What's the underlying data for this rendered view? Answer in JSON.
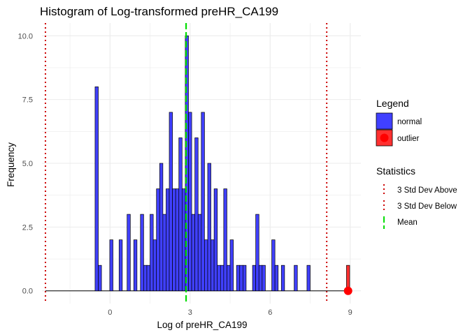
{
  "chart_data": {
    "type": "histogram",
    "title": "Histogram of Log-transformed preHR_CA199",
    "xlabel": "Log of preHR_CA199",
    "ylabel": "Frequency",
    "xlim": [
      -2.55,
      9.4
    ],
    "ylim": [
      -0.5,
      10.5
    ],
    "x_ticks": [
      "0",
      "3",
      "6",
      "9"
    ],
    "x_tick_values": [
      0,
      3,
      6,
      9
    ],
    "y_ticks": [
      "0.0",
      "2.5",
      "5.0",
      "7.5",
      "10.0"
    ],
    "y_tick_values": [
      0,
      2.5,
      5,
      7.5,
      10
    ],
    "grid": true,
    "bin_width": 0.12,
    "normal_bins": [
      {
        "x": -0.5,
        "count": 8
      },
      {
        "x": -0.38,
        "count": 1
      },
      {
        "x": 0.05,
        "count": 2
      },
      {
        "x": 0.4,
        "count": 2
      },
      {
        "x": 0.7,
        "count": 3
      },
      {
        "x": 0.95,
        "count": 2
      },
      {
        "x": 1.2,
        "count": 3
      },
      {
        "x": 1.32,
        "count": 1
      },
      {
        "x": 1.44,
        "count": 1
      },
      {
        "x": 1.56,
        "count": 3
      },
      {
        "x": 1.68,
        "count": 2
      },
      {
        "x": 1.8,
        "count": 4
      },
      {
        "x": 1.92,
        "count": 5
      },
      {
        "x": 2.04,
        "count": 3
      },
      {
        "x": 2.16,
        "count": 4
      },
      {
        "x": 2.28,
        "count": 7
      },
      {
        "x": 2.4,
        "count": 4
      },
      {
        "x": 2.52,
        "count": 4
      },
      {
        "x": 2.64,
        "count": 6
      },
      {
        "x": 2.76,
        "count": 4
      },
      {
        "x": 2.88,
        "count": 10
      },
      {
        "x": 3.0,
        "count": 7
      },
      {
        "x": 3.12,
        "count": 3
      },
      {
        "x": 3.24,
        "count": 6
      },
      {
        "x": 3.36,
        "count": 3
      },
      {
        "x": 3.48,
        "count": 7
      },
      {
        "x": 3.6,
        "count": 2
      },
      {
        "x": 3.72,
        "count": 5
      },
      {
        "x": 3.84,
        "count": 2
      },
      {
        "x": 3.96,
        "count": 4
      },
      {
        "x": 4.08,
        "count": 1
      },
      {
        "x": 4.2,
        "count": 1
      },
      {
        "x": 4.32,
        "count": 4
      },
      {
        "x": 4.44,
        "count": 1
      },
      {
        "x": 4.56,
        "count": 2
      },
      {
        "x": 4.8,
        "count": 1
      },
      {
        "x": 4.92,
        "count": 1
      },
      {
        "x": 5.04,
        "count": 1
      },
      {
        "x": 5.4,
        "count": 1
      },
      {
        "x": 5.52,
        "count": 3
      },
      {
        "x": 5.64,
        "count": 1
      },
      {
        "x": 5.76,
        "count": 1
      },
      {
        "x": 6.12,
        "count": 2
      },
      {
        "x": 6.24,
        "count": 1
      },
      {
        "x": 6.48,
        "count": 1
      },
      {
        "x": 6.96,
        "count": 1
      },
      {
        "x": 7.44,
        "count": 1
      }
    ],
    "outlier_bins": [
      {
        "x": 8.92,
        "count": 1
      }
    ],
    "outlier_points": [
      {
        "x": 8.92,
        "y": 0
      }
    ],
    "baseline_range": [
      -2.42,
      8.86
    ],
    "lines": {
      "std_above": 8.12,
      "std_below": -2.42,
      "mean": 2.85
    },
    "colors": {
      "normal": "#4040ff",
      "outlier": "#ff3030",
      "std": "#cc0000",
      "mean": "#00dd00",
      "grid": "#ebebeb"
    },
    "legend": {
      "title": "Legend",
      "items": [
        {
          "label": "normal",
          "color": "#4040ff"
        },
        {
          "label": "outlier",
          "color": "#ff3030"
        }
      ]
    },
    "stat_legend": {
      "title": "Statistics",
      "items": [
        {
          "label": "3 Std Dev Above",
          "color": "#cc0000",
          "style": "dotted"
        },
        {
          "label": "3 Std Dev Below",
          "color": "#cc0000",
          "style": "dotted"
        },
        {
          "label": "Mean",
          "color": "#00dd00",
          "style": "dashed"
        }
      ]
    }
  }
}
